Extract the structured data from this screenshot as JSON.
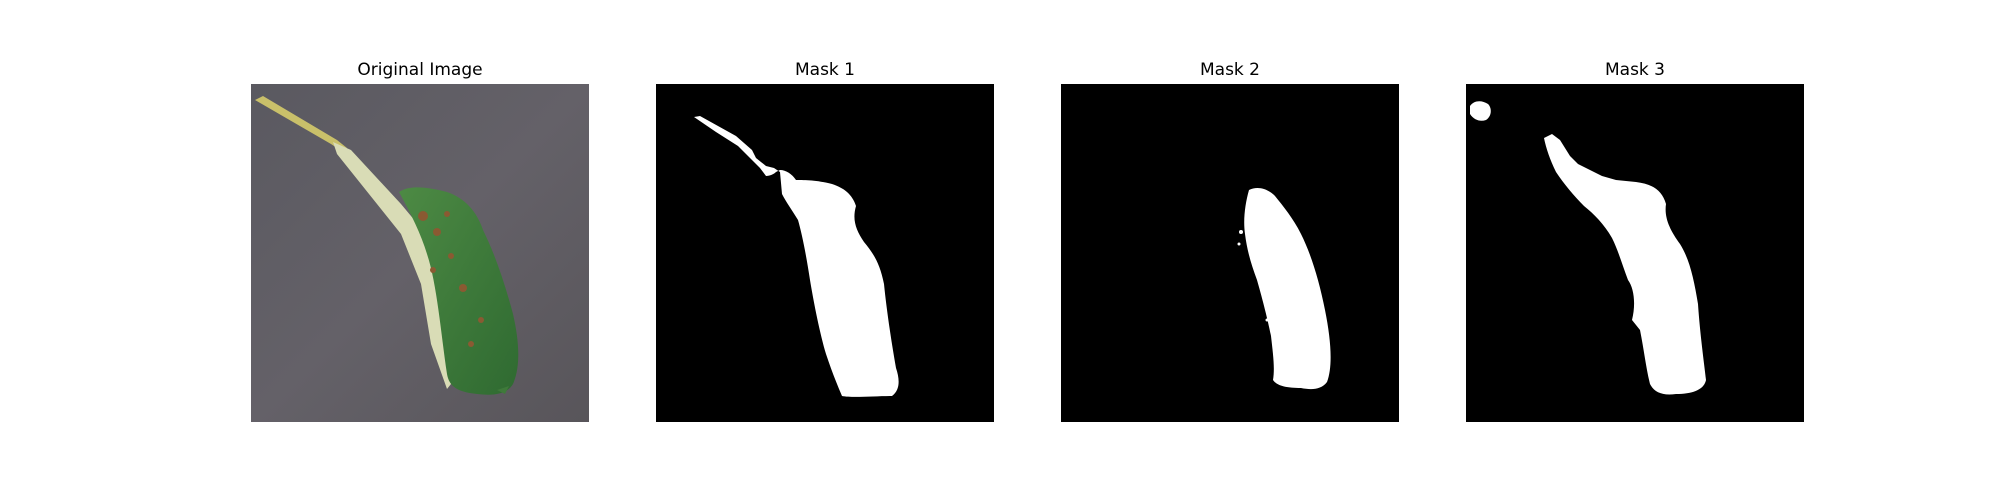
{
  "panels": [
    {
      "title": "Original Image",
      "kind": "photo"
    },
    {
      "title": "Mask 1",
      "kind": "mask"
    },
    {
      "title": "Mask 2",
      "kind": "mask"
    },
    {
      "title": "Mask 3",
      "kind": "mask"
    }
  ],
  "colors": {
    "figure_background": "#ffffff",
    "mask_background": "#000000",
    "mask_foreground": "#ffffff",
    "photo_background": "#5b585d",
    "leaf_green": "#3f7a3a",
    "leaf_underside": "#d9dcb6",
    "leaf_spots": "#8a5a32",
    "stem": "#c9c06a"
  }
}
